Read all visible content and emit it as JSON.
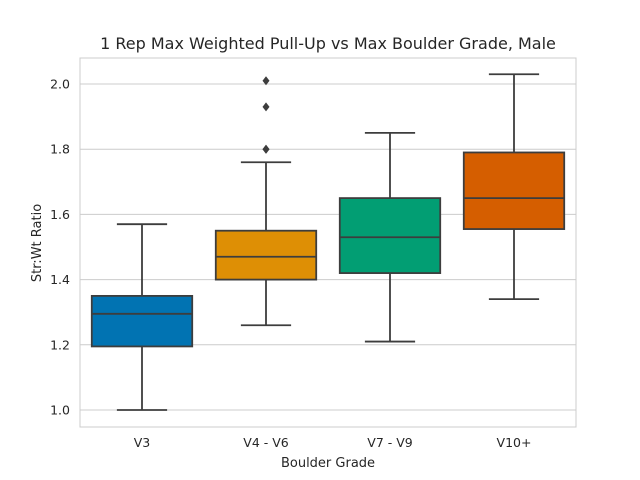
{
  "chart_data": {
    "type": "box",
    "title": "1 Rep Max Weighted Pull-Up vs Max Boulder Grade, Male",
    "xlabel": "Boulder Grade",
    "ylabel": "Str:Wt Ratio",
    "ylim": [
      0.95,
      2.085
    ],
    "yticks": [
      "1.0",
      "1.2",
      "1.4",
      "1.6",
      "1.8",
      "2.0"
    ],
    "grid": true,
    "categories": [
      "V3",
      "V4 - V6",
      "V7 - V9",
      "V10+"
    ],
    "boxes": [
      {
        "category": "V3",
        "whisker_low": 1.0,
        "q1": 1.195,
        "median": 1.295,
        "q3": 1.35,
        "whisker_high": 1.57,
        "outliers": [],
        "color": "#0173b2"
      },
      {
        "category": "V4 - V6",
        "whisker_low": 1.26,
        "q1": 1.4,
        "median": 1.47,
        "q3": 1.55,
        "whisker_high": 1.76,
        "outliers": [
          1.8,
          1.8,
          1.93,
          2.01
        ],
        "color": "#de8f05"
      },
      {
        "category": "V7 - V9",
        "whisker_low": 1.21,
        "q1": 1.42,
        "median": 1.53,
        "q3": 1.65,
        "whisker_high": 1.85,
        "outliers": [],
        "color": "#029e73"
      },
      {
        "category": "V10+",
        "whisker_low": 1.34,
        "q1": 1.555,
        "median": 1.65,
        "q3": 1.79,
        "whisker_high": 2.03,
        "outliers": [],
        "color": "#d55e00"
      }
    ]
  }
}
